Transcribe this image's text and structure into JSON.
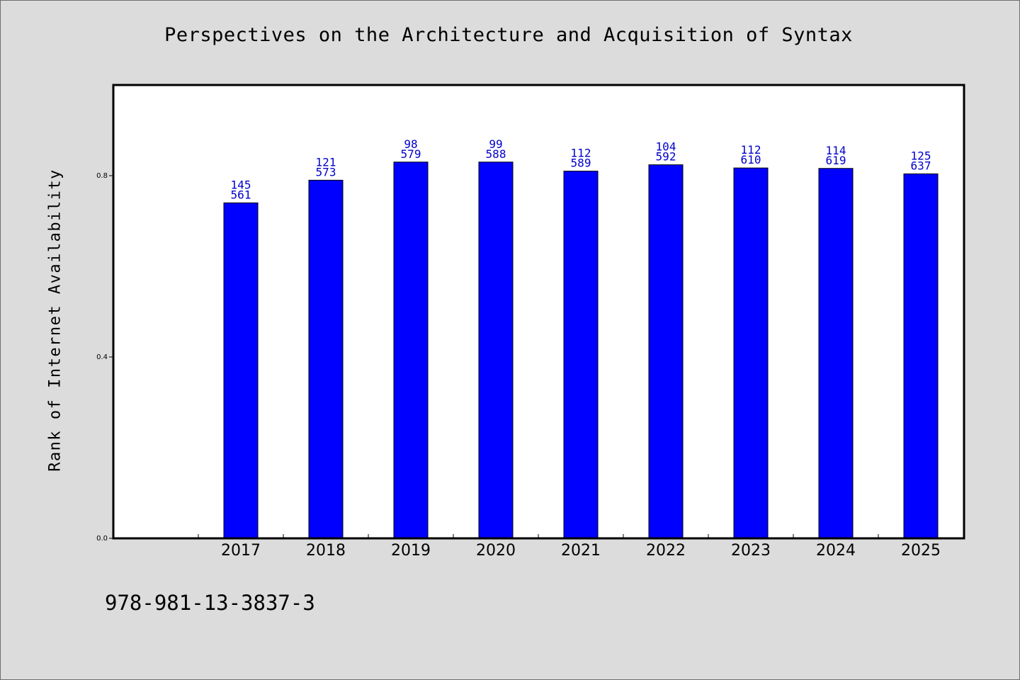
{
  "chart_data": {
    "type": "bar",
    "title": "Perspectives on the Architecture and Acquisition of Syntax",
    "ylabel": "Rank of Internet Availability",
    "xlabel": "",
    "categories": [
      "2017",
      "2018",
      "2019",
      "2020",
      "2021",
      "2022",
      "2023",
      "2024",
      "2025"
    ],
    "values": [
      0.74,
      0.79,
      0.83,
      0.83,
      0.81,
      0.824,
      0.817,
      0.816,
      0.804
    ],
    "label_top": [
      "145",
      "121",
      "98",
      "99",
      "112",
      "104",
      "112",
      "114",
      "125"
    ],
    "label_bottom": [
      "561",
      "573",
      "579",
      "588",
      "589",
      "592",
      "610",
      "619",
      "637"
    ],
    "ylim": [
      0,
      1.0
    ],
    "yticks": [
      "0.0",
      "0.4",
      "0.8"
    ],
    "ytick_values": [
      0.0,
      0.4,
      0.8
    ],
    "bar_color": "#0000ff",
    "label_color": "#0000cc",
    "grid": false
  },
  "footer_text": "978-981-13-3837-3"
}
